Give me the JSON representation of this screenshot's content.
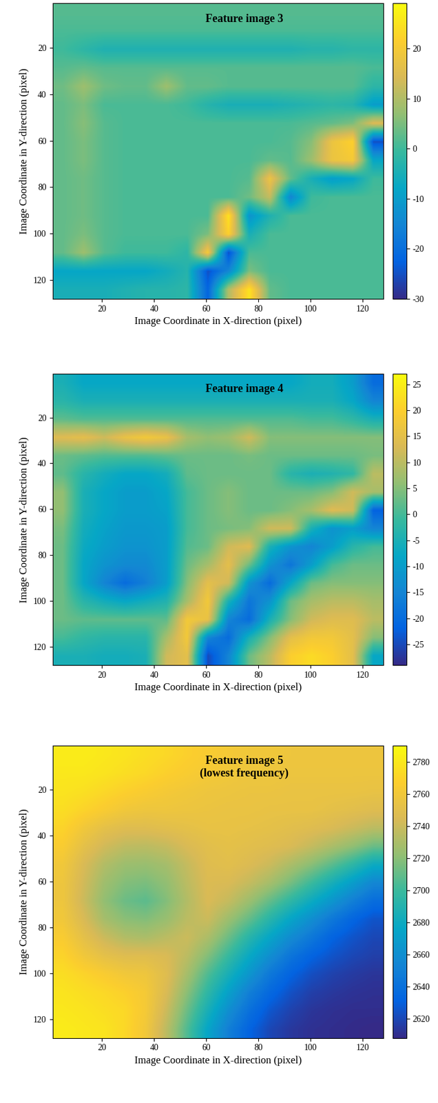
{
  "chart_data": [
    {
      "type": "heatmap",
      "title": "Feature image 3",
      "x_label": "Image Coordinate in X-direction (pixel)",
      "y_label": "Image Coordinate in Y-direction (pixel)",
      "xlim": [
        1,
        128
      ],
      "ylim": [
        128,
        1
      ],
      "xticks": [
        20,
        40,
        60,
        80,
        100,
        120
      ],
      "yticks": [
        20,
        40,
        60,
        80,
        100,
        120
      ],
      "colorbar_range": [
        -30,
        29
      ],
      "colorbar_ticks": [
        -30,
        -20,
        -10,
        0,
        10,
        20
      ],
      "cells": [
        [
          2,
          2,
          2,
          2,
          2,
          2,
          2,
          2,
          2,
          2,
          2,
          2,
          2,
          2,
          2,
          2
        ],
        [
          1,
          1,
          1,
          1,
          1,
          1,
          1,
          1,
          1,
          1,
          1,
          1,
          1,
          1,
          1,
          1
        ],
        [
          0,
          -2,
          -4,
          -4,
          -4,
          -4,
          -4,
          -4,
          -4,
          -4,
          -4,
          -4,
          -3,
          -3,
          -2,
          -2
        ],
        [
          2,
          3,
          2,
          2,
          2,
          2,
          2,
          2,
          2,
          2,
          2,
          2,
          2,
          2,
          2,
          1
        ],
        [
          4,
          8,
          4,
          3,
          3,
          8,
          3,
          3,
          2,
          2,
          2,
          2,
          2,
          2,
          2,
          -2
        ],
        [
          3,
          5,
          1,
          1,
          1,
          1,
          0,
          -3,
          -5,
          -5,
          -5,
          -4,
          -3,
          -2,
          -3,
          -10
        ],
        [
          3,
          6,
          2,
          1,
          1,
          1,
          1,
          1,
          1,
          1,
          1,
          1,
          2,
          3,
          5,
          15
        ],
        [
          3,
          5,
          2,
          1,
          1,
          1,
          1,
          1,
          1,
          1,
          1,
          2,
          6,
          18,
          22,
          -25
        ],
        [
          3,
          5,
          2,
          1,
          1,
          1,
          1,
          1,
          1,
          1,
          3,
          2,
          8,
          18,
          20,
          -8
        ],
        [
          3,
          4,
          2,
          1,
          1,
          1,
          1,
          1,
          1,
          2,
          18,
          3,
          -5,
          -10,
          -8,
          0
        ],
        [
          3,
          4,
          2,
          1,
          1,
          1,
          1,
          1,
          1,
          4,
          12,
          -15,
          0,
          1,
          1,
          1
        ],
        [
          3,
          4,
          2,
          1,
          1,
          1,
          1,
          1,
          25,
          -12,
          -4,
          1,
          1,
          1,
          1,
          1
        ],
        [
          3,
          5,
          2,
          1,
          1,
          1,
          1,
          5,
          22,
          -5,
          1,
          1,
          1,
          1,
          1,
          1
        ],
        [
          3,
          8,
          2,
          0,
          0,
          0,
          -2,
          20,
          -25,
          1,
          1,
          1,
          1,
          1,
          1,
          1
        ],
        [
          -8,
          -8,
          -8,
          -8,
          -8,
          -6,
          -3,
          -25,
          -15,
          5,
          1,
          1,
          1,
          1,
          1,
          1
        ],
        [
          -5,
          -5,
          -5,
          -4,
          -3,
          -3,
          -2,
          -22,
          10,
          25,
          3,
          1,
          1,
          1,
          1,
          1
        ]
      ]
    },
    {
      "type": "heatmap",
      "title": "Feature image 4",
      "x_label": "Image Coordinate in X-direction (pixel)",
      "y_label": "Image Coordinate in Y-direction (pixel)",
      "xlim": [
        1,
        128
      ],
      "ylim": [
        128,
        1
      ],
      "xticks": [
        20,
        40,
        60,
        80,
        100,
        120
      ],
      "yticks": [
        20,
        40,
        60,
        80,
        100,
        120
      ],
      "colorbar_range": [
        -29,
        27
      ],
      "colorbar_ticks": [
        -25,
        -20,
        -15,
        -10,
        -5,
        0,
        5,
        10,
        15,
        20,
        25
      ],
      "cells": [
        [
          -5,
          -8,
          -8,
          -8,
          -8,
          -8,
          -8,
          -8,
          -8,
          -8,
          -8,
          -8,
          -6,
          -6,
          -10,
          -20
        ],
        [
          -3,
          -5,
          -5,
          -5,
          -5,
          -5,
          -5,
          -5,
          -5,
          -5,
          -5,
          -5,
          -5,
          -5,
          -8,
          -15
        ],
        [
          2,
          1,
          1,
          1,
          1,
          1,
          1,
          1,
          1,
          1,
          1,
          1,
          0,
          0,
          -2,
          -5
        ],
        [
          14,
          15,
          12,
          16,
          18,
          16,
          8,
          6,
          7,
          12,
          5,
          5,
          5,
          5,
          5,
          5
        ],
        [
          3,
          2,
          1,
          1,
          1,
          2,
          3,
          3,
          3,
          4,
          3,
          3,
          3,
          3,
          3,
          4
        ],
        [
          2,
          -3,
          -6,
          -8,
          -8,
          -6,
          2,
          3,
          3,
          3,
          3,
          -3,
          -5,
          -4,
          -2,
          10
        ],
        [
          6,
          -5,
          -8,
          -10,
          -10,
          -8,
          0,
          3,
          5,
          3,
          3,
          3,
          3,
          5,
          12,
          8
        ],
        [
          6,
          -5,
          -8,
          -10,
          -10,
          -9,
          0,
          3,
          5,
          3,
          3,
          5,
          8,
          14,
          12,
          -22
        ],
        [
          4,
          -6,
          -9,
          -11,
          -11,
          -10,
          0,
          3,
          4,
          5,
          12,
          12,
          -5,
          -12,
          -10,
          -15
        ],
        [
          3,
          -7,
          -10,
          -12,
          -12,
          -10,
          1,
          3,
          12,
          14,
          -5,
          -12,
          -15,
          -10,
          -3,
          0
        ],
        [
          3,
          -8,
          -12,
          -14,
          -14,
          -10,
          3,
          8,
          15,
          3,
          -12,
          -18,
          -10,
          0,
          3,
          3
        ],
        [
          3,
          -8,
          -15,
          -20,
          -16,
          -10,
          5,
          15,
          12,
          -12,
          -20,
          -8,
          3,
          5,
          5,
          5
        ],
        [
          3,
          -3,
          -6,
          -8,
          -6,
          -4,
          8,
          18,
          -5,
          -18,
          -12,
          3,
          8,
          10,
          10,
          8
        ],
        [
          3,
          2,
          2,
          2,
          2,
          2,
          18,
          16,
          -15,
          -20,
          -5,
          5,
          12,
          14,
          14,
          10
        ],
        [
          0,
          -2,
          -3,
          -3,
          -3,
          8,
          18,
          -15,
          -20,
          -5,
          5,
          15,
          18,
          18,
          15,
          5
        ],
        [
          -5,
          -5,
          -6,
          -6,
          -5,
          12,
          15,
          -25,
          -15,
          3,
          10,
          20,
          22,
          20,
          15,
          -8
        ]
      ]
    },
    {
      "type": "heatmap",
      "title": "Feature image 5\n(lowest frequency)",
      "x_label": "Image Coordinate in X-direction (pixel)",
      "y_label": "Image Coordinate in Y-direction (pixel)",
      "xlim": [
        1,
        128
      ],
      "ylim": [
        128,
        1
      ],
      "xticks": [
        20,
        40,
        60,
        80,
        100,
        120
      ],
      "yticks": [
        20,
        40,
        60,
        80,
        100,
        120
      ],
      "colorbar_range": [
        2608,
        2790
      ],
      "colorbar_ticks": [
        2620,
        2640,
        2660,
        2680,
        2700,
        2720,
        2740,
        2760,
        2780
      ],
      "cells": [
        [
          2782,
          2782,
          2780,
          2778,
          2775,
          2772,
          2768,
          2765,
          2762,
          2760,
          2760,
          2758,
          2758,
          2758,
          2758,
          2758
        ],
        [
          2780,
          2780,
          2778,
          2775,
          2772,
          2768,
          2765,
          2762,
          2760,
          2758,
          2758,
          2757,
          2757,
          2757,
          2757,
          2757
        ],
        [
          2778,
          2776,
          2772,
          2768,
          2765,
          2762,
          2760,
          2758,
          2757,
          2756,
          2756,
          2755,
          2755,
          2755,
          2755,
          2754
        ],
        [
          2775,
          2770,
          2765,
          2760,
          2758,
          2758,
          2757,
          2756,
          2755,
          2755,
          2754,
          2754,
          2754,
          2752,
          2750,
          2748
        ],
        [
          2770,
          2760,
          2752,
          2748,
          2748,
          2750,
          2752,
          2754,
          2754,
          2753,
          2752,
          2750,
          2748,
          2745,
          2740,
          2735
        ],
        [
          2765,
          2752,
          2742,
          2736,
          2735,
          2738,
          2745,
          2750,
          2752,
          2750,
          2748,
          2745,
          2738,
          2730,
          2722,
          2712
        ],
        [
          2760,
          2745,
          2732,
          2725,
          2724,
          2728,
          2738,
          2748,
          2750,
          2746,
          2740,
          2730,
          2720,
          2708,
          2695,
          2680
        ],
        [
          2758,
          2742,
          2726,
          2718,
          2716,
          2722,
          2735,
          2746,
          2745,
          2738,
          2728,
          2715,
          2700,
          2685,
          2670,
          2655
        ],
        [
          2758,
          2740,
          2722,
          2712,
          2708,
          2718,
          2732,
          2745,
          2738,
          2725,
          2710,
          2695,
          2680,
          2665,
          2650,
          2638
        ],
        [
          2760,
          2745,
          2728,
          2720,
          2718,
          2724,
          2735,
          2740,
          2725,
          2710,
          2692,
          2675,
          2660,
          2645,
          2633,
          2625
        ],
        [
          2765,
          2752,
          2740,
          2732,
          2730,
          2735,
          2740,
          2730,
          2712,
          2692,
          2675,
          2658,
          2645,
          2632,
          2625,
          2620
        ],
        [
          2770,
          2760,
          2752,
          2748,
          2748,
          2745,
          2735,
          2718,
          2698,
          2678,
          2660,
          2643,
          2632,
          2625,
          2620,
          2617
        ],
        [
          2775,
          2770,
          2765,
          2760,
          2758,
          2748,
          2728,
          2705,
          2685,
          2665,
          2645,
          2632,
          2623,
          2618,
          2615,
          2613
        ],
        [
          2778,
          2775,
          2772,
          2768,
          2762,
          2745,
          2720,
          2695,
          2672,
          2650,
          2635,
          2624,
          2617,
          2614,
          2612,
          2611
        ],
        [
          2780,
          2778,
          2775,
          2772,
          2762,
          2740,
          2712,
          2685,
          2660,
          2640,
          2626,
          2618,
          2613,
          2611,
          2610,
          2610
        ],
        [
          2782,
          2780,
          2778,
          2772,
          2760,
          2735,
          2705,
          2675,
          2650,
          2632,
          2620,
          2614,
          2611,
          2610,
          2609,
          2608
        ]
      ]
    }
  ]
}
